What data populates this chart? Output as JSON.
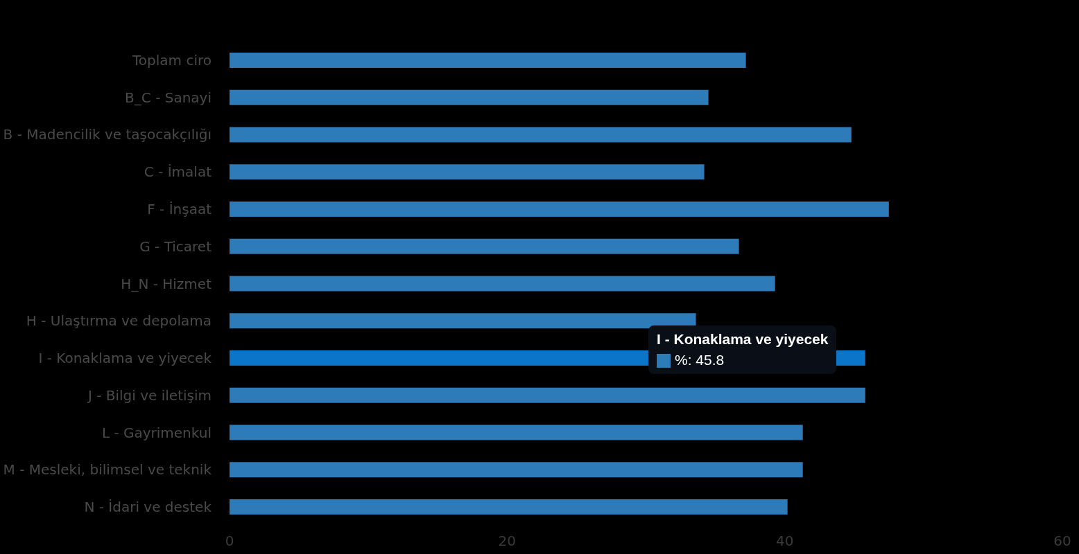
{
  "chart_data": {
    "type": "bar",
    "orientation": "horizontal",
    "categories": [
      "Toplam ciro",
      "B_C - Sanayi",
      "B - Madencilik ve taşocakçılığı",
      "C - İmalat",
      "F - İnşaat",
      "G - Ticaret",
      "H_N - Hizmet",
      "H - Ulaştırma ve depolama",
      "I - Konaklama ve yiyecek",
      "J - Bilgi ve iletişim",
      "L - Gayrimenkul",
      "M - Mesleki, bilimsel ve teknik",
      "N - İdari ve destek"
    ],
    "values": [
      37.2,
      34.5,
      44.8,
      34.2,
      47.5,
      36.7,
      39.3,
      33.6,
      45.8,
      45.8,
      41.3,
      41.3,
      40.2
    ],
    "colors": [
      "#2e7bb9",
      "#2e7bb9",
      "#2e7bb9",
      "#2e7bb9",
      "#2e7bb9",
      "#2e7bb9",
      "#2e7bb9",
      "#2e7bb9",
      "#0b76c9",
      "#2e7bb9",
      "#2e7bb9",
      "#2e7bb9",
      "#2e7bb9"
    ],
    "xlim": [
      0,
      60
    ],
    "xticks": [
      0,
      20,
      40,
      60
    ],
    "grid": false,
    "annotations": [
      "I - Konaklama ve yiyecek",
      "%: 45.8"
    ]
  }
}
